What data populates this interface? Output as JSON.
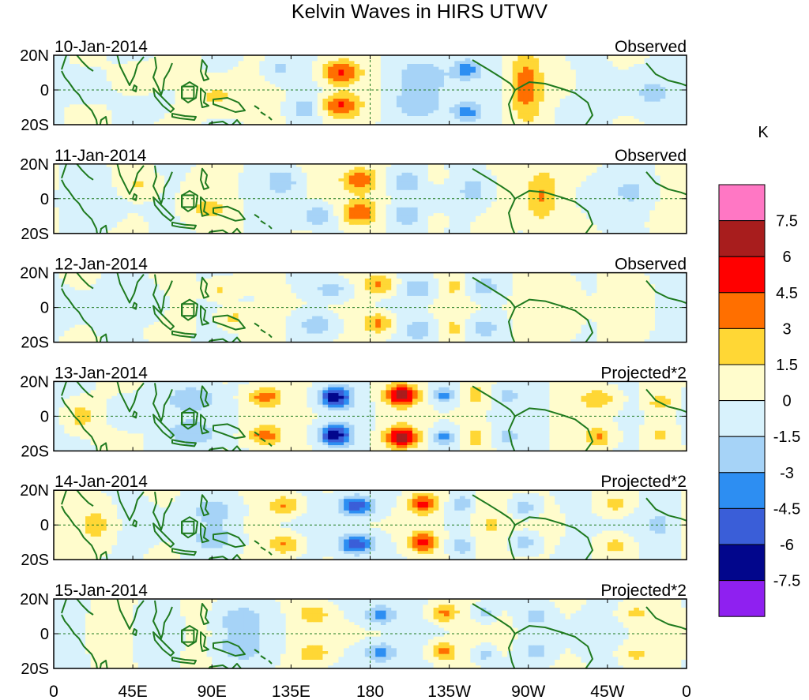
{
  "chart_data": {
    "type": "heatmap",
    "title": "Kelvin Waves in HIRS UTWV",
    "unit_label": "K",
    "lat_ticks": [
      "20N",
      "0",
      "20S"
    ],
    "lat_range": [
      -20,
      20
    ],
    "lon_range": [
      0,
      360
    ],
    "lon_ticks": [
      {
        "lon": 0,
        "label": "0"
      },
      {
        "lon": 45,
        "label": "45E"
      },
      {
        "lon": 90,
        "label": "90E"
      },
      {
        "lon": 135,
        "label": "135E"
      },
      {
        "lon": 180,
        "label": "180"
      },
      {
        "lon": 225,
        "label": "135W"
      },
      {
        "lon": 270,
        "label": "90W"
      },
      {
        "lon": 315,
        "label": "45W"
      },
      {
        "lon": 360,
        "label": "0"
      }
    ],
    "colorbar": {
      "labels": [
        "7.5",
        "6",
        "4.5",
        "3",
        "1.5",
        "0",
        "-1.5",
        "-3",
        "-4.5",
        "-6",
        "-7.5"
      ],
      "colors": [
        "#ff77c4",
        "#a81d1d",
        "#ff0000",
        "#ff6f00",
        "#ffd735",
        "#fffccc",
        "#d8f2fc",
        "#a6d3f7",
        "#2d8ef2",
        "#3a5ed8",
        "#02068c",
        "#8f20f0"
      ]
    },
    "panels": [
      {
        "date": "10-Jan-2014",
        "label": "Observed",
        "blobs": [
          {
            "lon": 163,
            "lat": 10,
            "amp": 4.9,
            "w": 11,
            "h": 7
          },
          {
            "lon": 163,
            "lat": -9,
            "amp": 4.9,
            "w": 11,
            "h": 7
          },
          {
            "lon": 268,
            "lat": 2,
            "amp": 3.8,
            "w": 9,
            "h": 20
          },
          {
            "lon": 210,
            "lat": 8,
            "amp": -2.6,
            "w": 16,
            "h": 10
          },
          {
            "lon": 208,
            "lat": -8,
            "amp": -2.6,
            "w": 16,
            "h": 10
          },
          {
            "lon": 235,
            "lat": 12,
            "amp": -3.6,
            "w": 8,
            "h": 6
          },
          {
            "lon": 235,
            "lat": -13,
            "amp": -3.6,
            "w": 8,
            "h": 6
          },
          {
            "lon": 143,
            "lat": -11,
            "amp": -2.2,
            "w": 8,
            "h": 6
          },
          {
            "lon": 128,
            "lat": 12,
            "amp": -2.0,
            "w": 8,
            "h": 7
          },
          {
            "lon": 92,
            "lat": -4,
            "amp": 1.9,
            "w": 12,
            "h": 8
          },
          {
            "lon": 48,
            "lat": 6,
            "amp": 1.6,
            "w": 12,
            "h": 8
          },
          {
            "lon": 340,
            "lat": -2,
            "amp": -1.7,
            "w": 12,
            "h": 10
          },
          {
            "lon": 18,
            "lat": 2,
            "amp": -1.1,
            "w": 14,
            "h": 12
          },
          {
            "lon": 300,
            "lat": -12,
            "amp": -1.3,
            "w": 12,
            "h": 8
          }
        ]
      },
      {
        "date": "11-Jan-2014",
        "label": "Observed",
        "blobs": [
          {
            "lon": 174,
            "lat": 11,
            "amp": 4.4,
            "w": 10,
            "h": 7
          },
          {
            "lon": 174,
            "lat": -8,
            "amp": 4.4,
            "w": 10,
            "h": 7
          },
          {
            "lon": 278,
            "lat": 2,
            "amp": 3.2,
            "w": 9,
            "h": 16
          },
          {
            "lon": 200,
            "lat": 10,
            "amp": -2.8,
            "w": 10,
            "h": 7
          },
          {
            "lon": 200,
            "lat": -10,
            "amp": -2.8,
            "w": 10,
            "h": 7
          },
          {
            "lon": 218,
            "lat": 13,
            "amp": 2.0,
            "w": 5,
            "h": 5
          },
          {
            "lon": 218,
            "lat": -13,
            "amp": 2.0,
            "w": 5,
            "h": 5
          },
          {
            "lon": 240,
            "lat": 5,
            "amp": -2.2,
            "w": 10,
            "h": 10
          },
          {
            "lon": 150,
            "lat": -10,
            "amp": -3.0,
            "w": 9,
            "h": 6
          },
          {
            "lon": 130,
            "lat": 10,
            "amp": -2.4,
            "w": 9,
            "h": 7
          },
          {
            "lon": 88,
            "lat": -6,
            "amp": 2.0,
            "w": 10,
            "h": 6
          },
          {
            "lon": 48,
            "lat": 8,
            "amp": 1.6,
            "w": 10,
            "h": 6
          },
          {
            "lon": 330,
            "lat": 4,
            "amp": -1.6,
            "w": 14,
            "h": 10
          },
          {
            "lon": 15,
            "lat": 0,
            "amp": -1.0,
            "w": 14,
            "h": 12
          }
        ]
      },
      {
        "date": "12-Jan-2014",
        "label": "Observed",
        "blobs": [
          {
            "lon": 185,
            "lat": 13,
            "amp": 3.6,
            "w": 9,
            "h": 6
          },
          {
            "lon": 185,
            "lat": -9,
            "amp": 3.6,
            "w": 9,
            "h": 6
          },
          {
            "lon": 208,
            "lat": 11,
            "amp": -2.8,
            "w": 8,
            "h": 6
          },
          {
            "lon": 208,
            "lat": -13,
            "amp": -2.8,
            "w": 8,
            "h": 6
          },
          {
            "lon": 228,
            "lat": 12,
            "amp": 2.2,
            "w": 4,
            "h": 4
          },
          {
            "lon": 228,
            "lat": -12,
            "amp": 2.2,
            "w": 4,
            "h": 4
          },
          {
            "lon": 245,
            "lat": 12,
            "amp": -2.4,
            "w": 8,
            "h": 6
          },
          {
            "lon": 245,
            "lat": -12,
            "amp": -2.4,
            "w": 8,
            "h": 6
          },
          {
            "lon": 158,
            "lat": 10,
            "amp": -2.5,
            "w": 10,
            "h": 6
          },
          {
            "lon": 150,
            "lat": -10,
            "amp": -2.8,
            "w": 10,
            "h": 6
          },
          {
            "lon": 102,
            "lat": -6,
            "amp": 2.2,
            "w": 9,
            "h": 6
          },
          {
            "lon": 95,
            "lat": 10,
            "amp": 2.0,
            "w": 9,
            "h": 6
          },
          {
            "lon": 290,
            "lat": 0,
            "amp": 1.9,
            "w": 10,
            "h": 14
          },
          {
            "lon": 55,
            "lat": 2,
            "amp": -1.2,
            "w": 12,
            "h": 10
          }
        ]
      },
      {
        "date": "13-Jan-2014",
        "label": "Projected*2",
        "blobs": [
          {
            "lon": 198,
            "lat": 12,
            "amp": 6.8,
            "w": 9,
            "h": 6
          },
          {
            "lon": 198,
            "lat": -12,
            "amp": 6.8,
            "w": 9,
            "h": 6
          },
          {
            "lon": 160,
            "lat": 11,
            "amp": -6.8,
            "w": 9,
            "h": 6
          },
          {
            "lon": 160,
            "lat": -11,
            "amp": -6.8,
            "w": 9,
            "h": 6
          },
          {
            "lon": 222,
            "lat": 12,
            "amp": -3.6,
            "w": 6,
            "h": 5
          },
          {
            "lon": 222,
            "lat": -12,
            "amp": -3.6,
            "w": 6,
            "h": 5
          },
          {
            "lon": 240,
            "lat": 12,
            "amp": 2.8,
            "w": 5,
            "h": 5
          },
          {
            "lon": 240,
            "lat": -12,
            "amp": 2.8,
            "w": 5,
            "h": 5
          },
          {
            "lon": 258,
            "lat": 12,
            "amp": -2.2,
            "w": 6,
            "h": 5
          },
          {
            "lon": 258,
            "lat": -12,
            "amp": -2.2,
            "w": 6,
            "h": 5
          },
          {
            "lon": 120,
            "lat": 11,
            "amp": 4.0,
            "w": 9,
            "h": 6
          },
          {
            "lon": 120,
            "lat": -11,
            "amp": 4.0,
            "w": 9,
            "h": 6
          },
          {
            "lon": 80,
            "lat": 10,
            "amp": -2.6,
            "w": 14,
            "h": 8
          },
          {
            "lon": 80,
            "lat": -10,
            "amp": -2.6,
            "w": 14,
            "h": 8
          },
          {
            "lon": 310,
            "lat": 10,
            "amp": 2.5,
            "w": 10,
            "h": 6
          },
          {
            "lon": 310,
            "lat": -12,
            "amp": 3.0,
            "w": 8,
            "h": 6
          },
          {
            "lon": 345,
            "lat": 8,
            "amp": 2.2,
            "w": 8,
            "h": 6
          },
          {
            "lon": 345,
            "lat": -10,
            "amp": 1.8,
            "w": 8,
            "h": 6
          },
          {
            "lon": 15,
            "lat": 0,
            "amp": 2.4,
            "w": 8,
            "h": 8
          },
          {
            "lon": 40,
            "lat": 2,
            "amp": -1.6,
            "w": 10,
            "h": 10
          }
        ]
      },
      {
        "date": "14-Jan-2014",
        "label": "Projected*2",
        "blobs": [
          {
            "lon": 210,
            "lat": 12,
            "amp": 4.8,
            "w": 8,
            "h": 6
          },
          {
            "lon": 210,
            "lat": -10,
            "amp": 4.8,
            "w": 8,
            "h": 6
          },
          {
            "lon": 172,
            "lat": 11,
            "amp": -5.8,
            "w": 10,
            "h": 6
          },
          {
            "lon": 172,
            "lat": -11,
            "amp": -5.8,
            "w": 10,
            "h": 6
          },
          {
            "lon": 232,
            "lat": 12,
            "amp": -2.6,
            "w": 6,
            "h": 5
          },
          {
            "lon": 232,
            "lat": -12,
            "amp": -2.6,
            "w": 6,
            "h": 5
          },
          {
            "lon": 248,
            "lat": 0,
            "amp": 2.0,
            "w": 10,
            "h": 16
          },
          {
            "lon": 268,
            "lat": 10,
            "amp": -2.6,
            "w": 8,
            "h": 6
          },
          {
            "lon": 268,
            "lat": -10,
            "amp": -2.6,
            "w": 8,
            "h": 6
          },
          {
            "lon": 132,
            "lat": 11,
            "amp": 3.4,
            "w": 9,
            "h": 6
          },
          {
            "lon": 132,
            "lat": -11,
            "amp": 3.4,
            "w": 9,
            "h": 6
          },
          {
            "lon": 92,
            "lat": 8,
            "amp": -2.4,
            "w": 14,
            "h": 8
          },
          {
            "lon": 92,
            "lat": -8,
            "amp": -2.4,
            "w": 14,
            "h": 8
          },
          {
            "lon": 320,
            "lat": 12,
            "amp": 2.2,
            "w": 8,
            "h": 5
          },
          {
            "lon": 320,
            "lat": -12,
            "amp": 2.2,
            "w": 8,
            "h": 5
          },
          {
            "lon": 25,
            "lat": 0,
            "amp": 1.9,
            "w": 10,
            "h": 12
          },
          {
            "lon": 345,
            "lat": 0,
            "amp": -1.6,
            "w": 10,
            "h": 10
          }
        ]
      },
      {
        "date": "15-Jan-2014",
        "label": "Projected*2",
        "blobs": [
          {
            "lon": 222,
            "lat": 12,
            "amp": 3.6,
            "w": 8,
            "h": 6
          },
          {
            "lon": 222,
            "lat": -10,
            "amp": 3.6,
            "w": 8,
            "h": 6
          },
          {
            "lon": 186,
            "lat": 11,
            "amp": -3.8,
            "w": 10,
            "h": 6
          },
          {
            "lon": 186,
            "lat": -11,
            "amp": -3.8,
            "w": 10,
            "h": 6
          },
          {
            "lon": 245,
            "lat": 12,
            "amp": -2.4,
            "w": 6,
            "h": 5
          },
          {
            "lon": 245,
            "lat": -12,
            "amp": -2.4,
            "w": 6,
            "h": 5
          },
          {
            "lon": 275,
            "lat": 10,
            "amp": -2.2,
            "w": 8,
            "h": 6
          },
          {
            "lon": 275,
            "lat": -10,
            "amp": -2.2,
            "w": 8,
            "h": 6
          },
          {
            "lon": 148,
            "lat": 11,
            "amp": 2.6,
            "w": 9,
            "h": 6
          },
          {
            "lon": 148,
            "lat": -11,
            "amp": 2.6,
            "w": 9,
            "h": 6
          },
          {
            "lon": 105,
            "lat": 8,
            "amp": -2.3,
            "w": 14,
            "h": 8
          },
          {
            "lon": 105,
            "lat": -8,
            "amp": -2.3,
            "w": 14,
            "h": 8
          },
          {
            "lon": 330,
            "lat": 12,
            "amp": 1.8,
            "w": 8,
            "h": 5
          },
          {
            "lon": 330,
            "lat": -12,
            "amp": 1.8,
            "w": 8,
            "h": 5
          },
          {
            "lon": 30,
            "lat": 0,
            "amp": 1.6,
            "w": 10,
            "h": 12
          },
          {
            "lon": 65,
            "lat": 0,
            "amp": -1.5,
            "w": 10,
            "h": 10
          }
        ]
      }
    ]
  }
}
